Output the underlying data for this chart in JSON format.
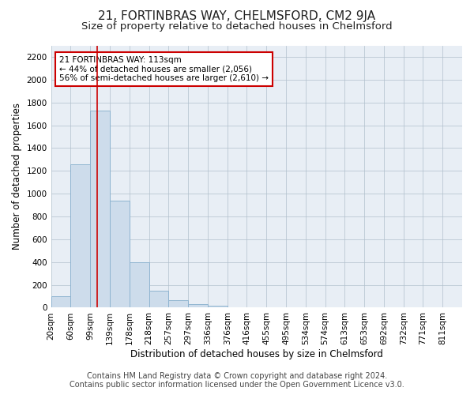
{
  "title": "21, FORTINBRAS WAY, CHELMSFORD, CM2 9JA",
  "subtitle": "Size of property relative to detached houses in Chelmsford",
  "xlabel": "Distribution of detached houses by size in Chelmsford",
  "ylabel": "Number of detached properties",
  "footer_line1": "Contains HM Land Registry data © Crown copyright and database right 2024.",
  "footer_line2": "Contains public sector information licensed under the Open Government Licence v3.0.",
  "bin_labels": [
    "20sqm",
    "60sqm",
    "99sqm",
    "139sqm",
    "178sqm",
    "218sqm",
    "257sqm",
    "297sqm",
    "336sqm",
    "376sqm",
    "416sqm",
    "455sqm",
    "495sqm",
    "534sqm",
    "574sqm",
    "613sqm",
    "653sqm",
    "692sqm",
    "732sqm",
    "771sqm",
    "811sqm"
  ],
  "n_bins": 21,
  "bar_values": [
    100,
    1260,
    1730,
    940,
    400,
    150,
    65,
    30,
    20,
    0,
    0,
    0,
    0,
    0,
    0,
    0,
    0,
    0,
    0,
    0,
    0
  ],
  "bar_color": "#cddceb",
  "bar_edge_color": "#8eb4d0",
  "red_line_bin": 2.35,
  "red_line_color": "#cc0000",
  "annotation_text_line1": "21 FORTINBRAS WAY: 113sqm",
  "annotation_text_line2": "← 44% of detached houses are smaller (2,056)",
  "annotation_text_line3": "56% of semi-detached houses are larger (2,610) →",
  "annotation_box_color": "#cc0000",
  "ylim": [
    0,
    2300
  ],
  "yticks": [
    0,
    200,
    400,
    600,
    800,
    1000,
    1200,
    1400,
    1600,
    1800,
    2000,
    2200
  ],
  "plot_bg_color": "#e8eef5",
  "background_color": "#ffffff",
  "grid_color": "#b0bfcc",
  "title_fontsize": 11,
  "subtitle_fontsize": 9.5,
  "axis_label_fontsize": 8.5,
  "tick_fontsize": 7.5,
  "footer_fontsize": 7,
  "annotation_fontsize": 7.5
}
